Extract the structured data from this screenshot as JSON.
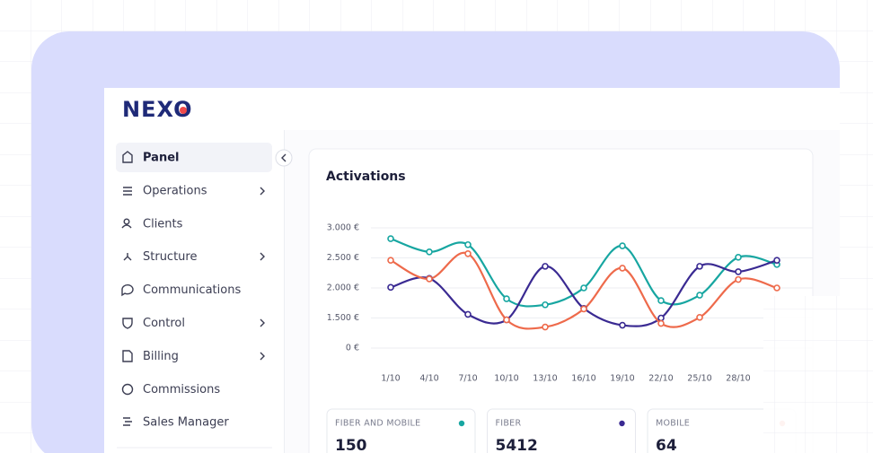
{
  "logo": "NEXO",
  "nav": [
    {
      "label": "Panel"
    },
    {
      "label": "Operations"
    },
    {
      "label": "Clients"
    },
    {
      "label": "Structure"
    },
    {
      "label": "Communications"
    },
    {
      "label": "Control"
    },
    {
      "label": "Billing"
    },
    {
      "label": "Commissions"
    },
    {
      "label": "Sales Manager"
    }
  ],
  "chart_data": {
    "type": "line",
    "title": "Activations",
    "categories": [
      "1/10",
      "4/10",
      "7/10",
      "10/10",
      "13/10",
      "16/10",
      "19/10",
      "22/10",
      "25/10",
      "28/10",
      null
    ],
    "ylim": [
      0,
      3000
    ],
    "yticks": [
      {
        "value": 3000,
        "label": "3.000 €"
      },
      {
        "value": 2500,
        "label": "2.500 €"
      },
      {
        "value": 2000,
        "label": "2.000 €"
      },
      {
        "value": 1500,
        "label": "1.500 €"
      },
      {
        "value": 0,
        "label": "0 €"
      }
    ],
    "grid": true,
    "series": [
      {
        "name": "FIBER AND MOBILE",
        "color": "#17a6a1",
        "values": [
          2820,
          2600,
          2720,
          1820,
          1720,
          2000,
          2700,
          1790,
          1880,
          2510,
          2390
        ]
      },
      {
        "name": "FIBER",
        "color": "#3a2a92",
        "values": [
          2010,
          2160,
          1560,
          1410,
          2360,
          1660,
          1140,
          1500,
          2360,
          2270,
          2460
        ]
      },
      {
        "name": "MOBILE",
        "color": "#ee6a4b",
        "values": [
          2460,
          2150,
          2570,
          1410,
          1050,
          1650,
          2330,
          1230,
          1510,
          2140,
          2000
        ]
      }
    ]
  },
  "cards": [
    {
      "value": 150
    },
    {
      "value": 5412
    },
    {
      "value": 64
    }
  ]
}
